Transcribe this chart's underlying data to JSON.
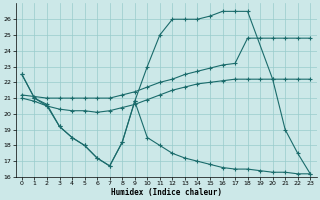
{
  "xlabel": "Humidex (Indice chaleur)",
  "background_color": "#cce8e8",
  "grid_color": "#99cccc",
  "line_color": "#1a6b6b",
  "xlim": [
    -0.5,
    23.5
  ],
  "ylim": [
    16,
    27
  ],
  "yticks": [
    16,
    17,
    18,
    19,
    20,
    21,
    22,
    23,
    24,
    25,
    26
  ],
  "xticks": [
    0,
    1,
    2,
    3,
    4,
    5,
    6,
    7,
    8,
    9,
    10,
    11,
    12,
    13,
    14,
    15,
    16,
    17,
    18,
    19,
    20,
    21,
    22,
    23
  ],
  "curve_A": {
    "x": [
      0,
      1,
      2,
      3,
      4,
      5,
      6,
      7,
      8,
      9,
      10,
      11,
      12,
      13,
      14,
      15,
      16,
      17,
      18,
      20,
      21,
      22,
      23
    ],
    "y": [
      22.5,
      21.0,
      20.6,
      19.2,
      18.5,
      18.0,
      17.2,
      16.7,
      18.2,
      20.8,
      23.0,
      25.0,
      26.0,
      26.0,
      26.0,
      26.2,
      26.5,
      26.5,
      26.5,
      22.2,
      19.0,
      17.5,
      16.2
    ]
  },
  "curve_B": {
    "x": [
      0,
      1,
      2,
      3,
      4,
      5,
      6,
      7,
      8,
      9,
      10,
      11,
      12,
      13,
      14,
      15,
      16,
      17,
      18,
      19,
      20,
      21,
      22,
      23
    ],
    "y": [
      21.2,
      21.1,
      21.0,
      21.0,
      21.0,
      21.0,
      21.0,
      21.0,
      21.2,
      21.4,
      21.7,
      22.0,
      22.2,
      22.5,
      22.7,
      22.9,
      23.1,
      23.2,
      24.8,
      24.8,
      24.8,
      24.8,
      24.8,
      24.8
    ]
  },
  "curve_C": {
    "x": [
      0,
      1,
      2,
      3,
      4,
      5,
      6,
      7,
      8,
      9,
      10,
      11,
      12,
      13,
      14,
      15,
      16,
      17,
      18,
      19,
      20,
      21,
      22,
      23
    ],
    "y": [
      21.0,
      20.8,
      20.5,
      20.3,
      20.2,
      20.2,
      20.1,
      20.2,
      20.4,
      20.6,
      20.9,
      21.2,
      21.5,
      21.7,
      21.9,
      22.0,
      22.1,
      22.2,
      22.2,
      22.2,
      22.2,
      22.2,
      22.2,
      22.2
    ]
  },
  "curve_D": {
    "x": [
      0,
      1,
      2,
      3,
      4,
      5,
      6,
      7,
      8,
      9,
      10,
      11,
      12,
      13,
      14,
      15,
      16,
      17,
      18,
      19,
      20,
      21,
      22,
      23
    ],
    "y": [
      22.5,
      21.0,
      20.5,
      19.2,
      18.5,
      18.0,
      17.2,
      16.7,
      18.2,
      20.8,
      18.5,
      18.0,
      17.5,
      17.2,
      17.0,
      16.8,
      16.6,
      16.5,
      16.5,
      16.4,
      16.3,
      16.3,
      16.2,
      16.2
    ]
  }
}
